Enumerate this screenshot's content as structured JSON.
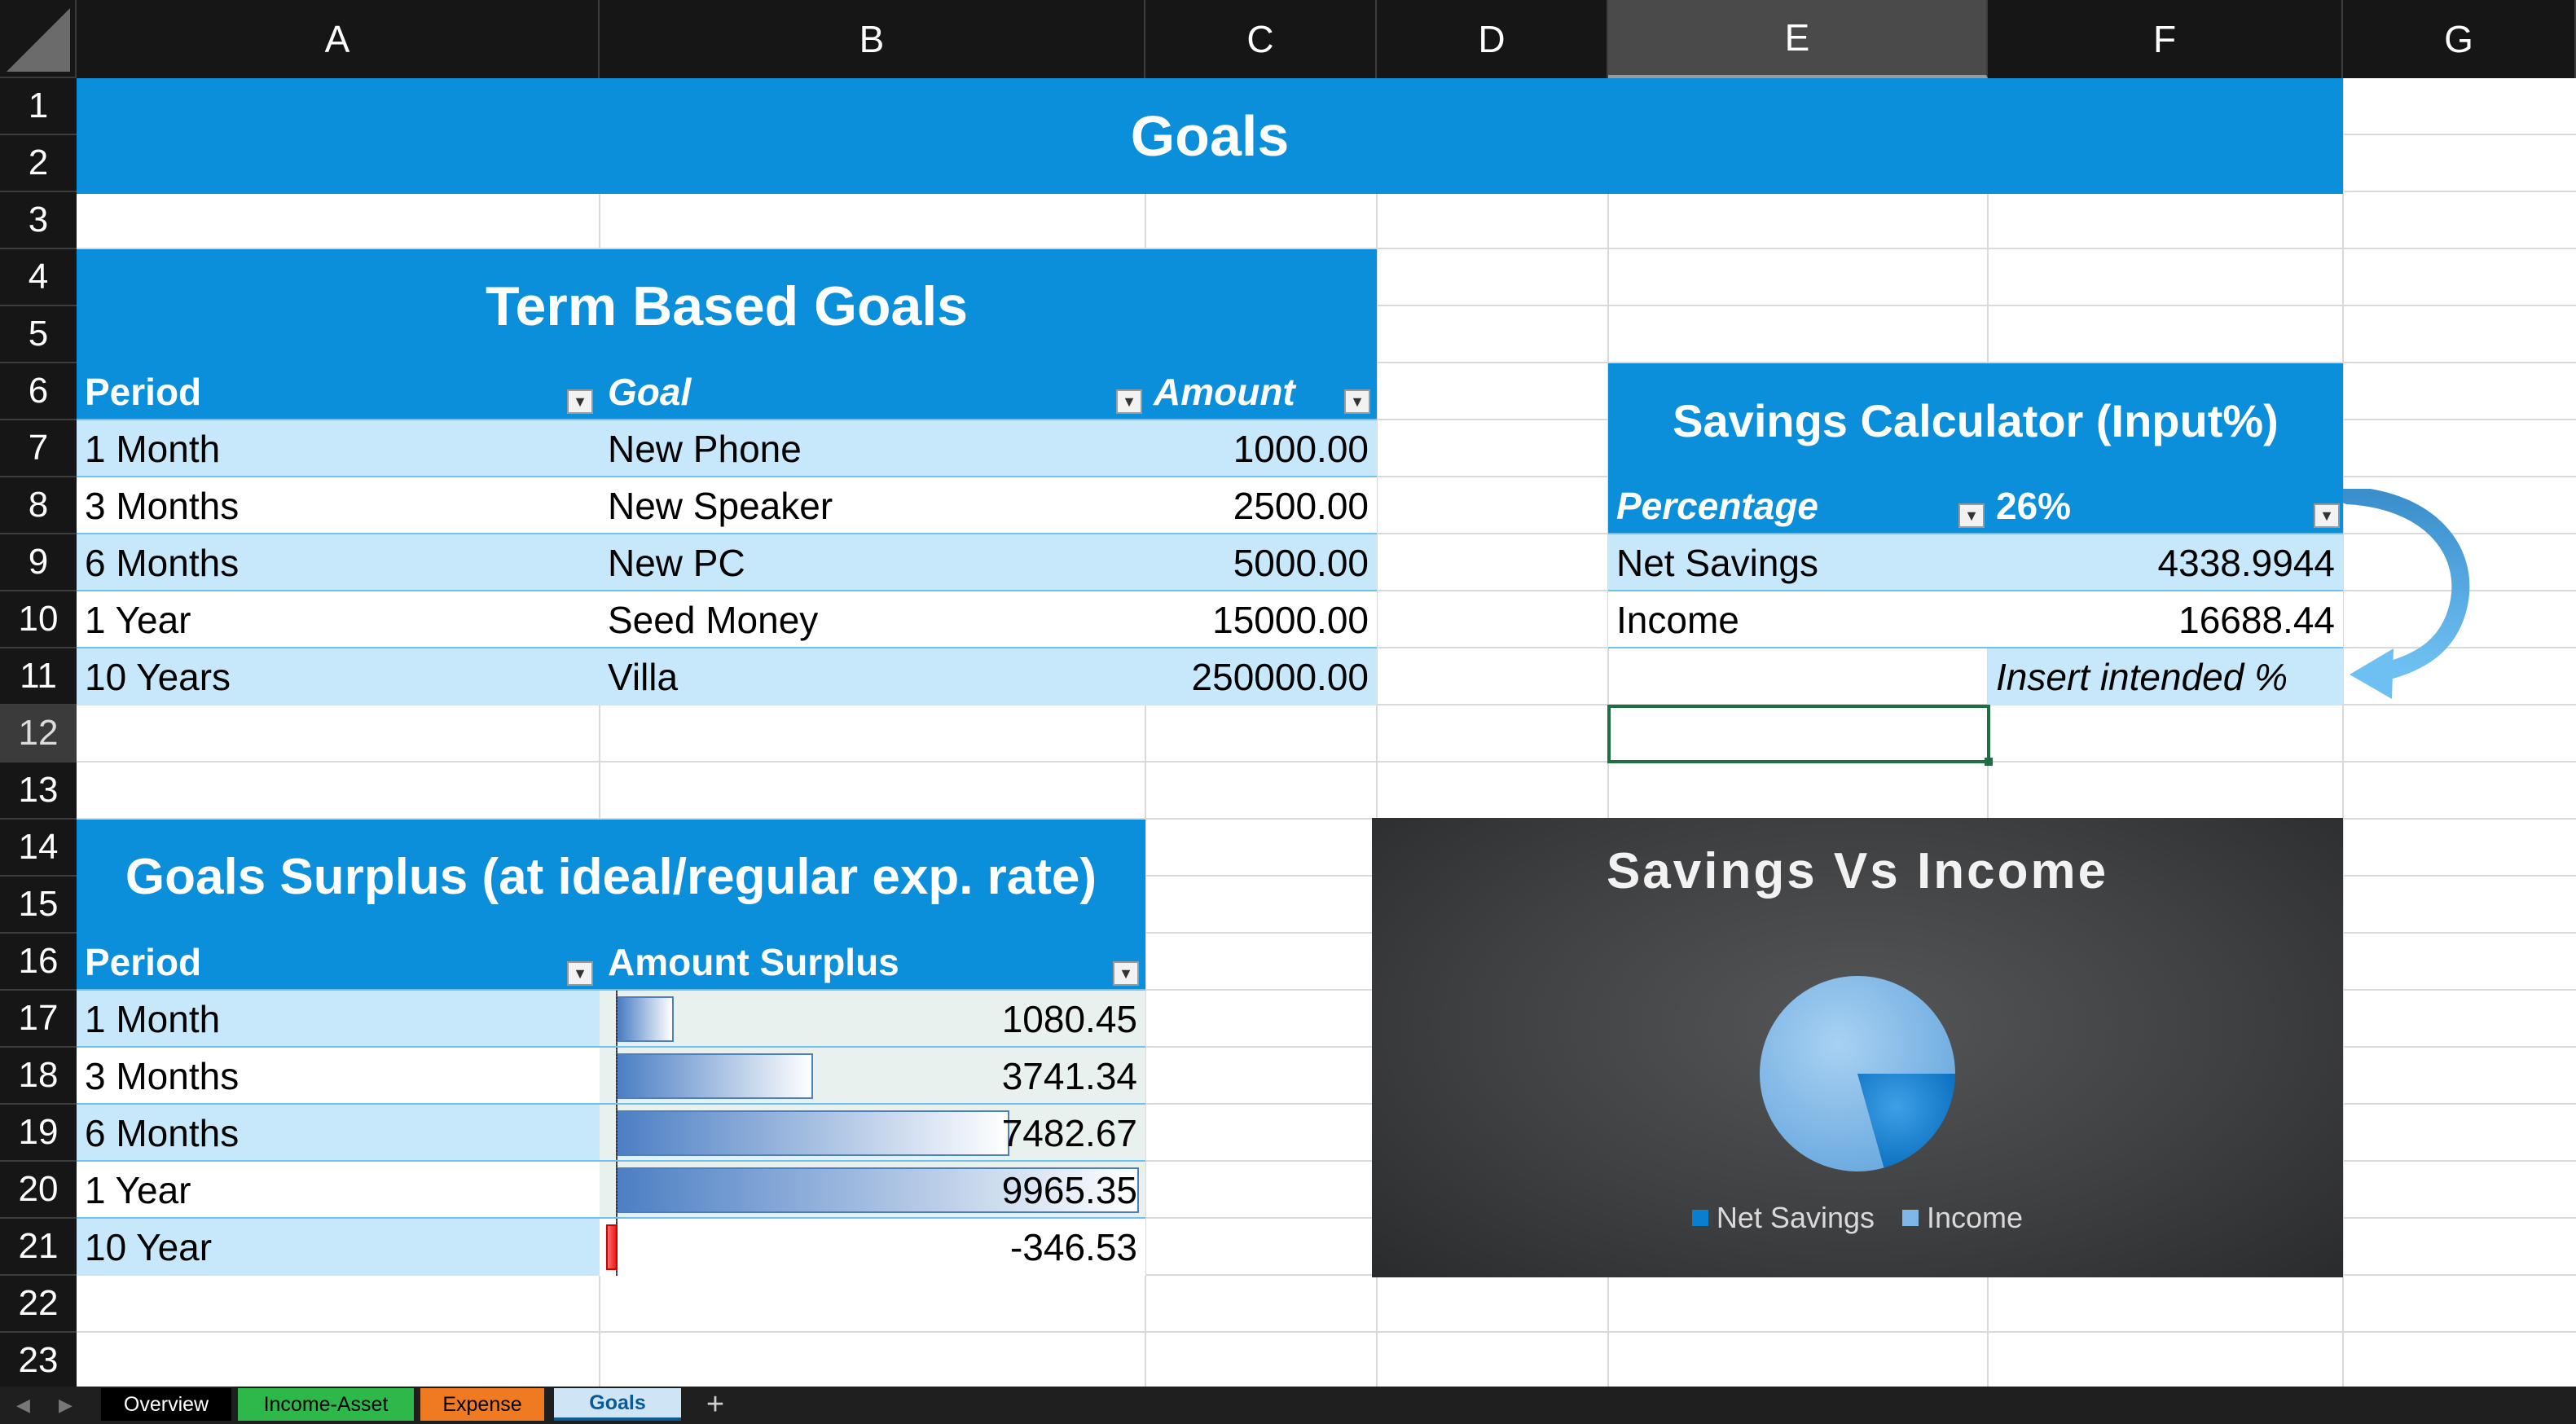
{
  "columns": [
    "A",
    "B",
    "C",
    "D",
    "E",
    "F",
    "G"
  ],
  "rows": [
    "1",
    "2",
    "3",
    "4",
    "5",
    "6",
    "7",
    "8",
    "9",
    "10",
    "11",
    "12",
    "13",
    "14",
    "15",
    "16",
    "17",
    "18",
    "19",
    "20",
    "21",
    "22",
    "23"
  ],
  "sheet_title": "Goals",
  "term_goals": {
    "title": "Term Based Goals",
    "headers": [
      "Period",
      "Goal",
      "Amount"
    ],
    "rows": [
      {
        "period": "1 Month",
        "goal": "New Phone",
        "amount": "1000.00"
      },
      {
        "period": "3 Months",
        "goal": "New Speaker",
        "amount": "2500.00"
      },
      {
        "period": "6 Months",
        "goal": "New PC",
        "amount": "5000.00"
      },
      {
        "period": "1 Year",
        "goal": "Seed Money",
        "amount": "15000.00"
      },
      {
        "period": "10 Years",
        "goal": "Villa",
        "amount": "250000.00"
      }
    ]
  },
  "savings_calc": {
    "title": "Savings Calculator (Input%)",
    "percentage_label": "Percentage",
    "percentage_value": "26%",
    "net_savings_label": "Net Savings",
    "net_savings_value": "4338.9944",
    "income_label": "Income",
    "income_value": "16688.44",
    "hint": "Insert intended %"
  },
  "surplus": {
    "title": "Goals Surplus (at ideal/regular exp. rate)",
    "headers": [
      "Period",
      "Amount Surplus"
    ],
    "rows": [
      {
        "period": "1 Month",
        "amount": "1080.45",
        "fill": 0.108
      },
      {
        "period": "3 Months",
        "amount": "3741.34",
        "fill": 0.375
      },
      {
        "period": "6 Months",
        "amount": "7482.67",
        "fill": 0.751
      },
      {
        "period": "1 Year",
        "amount": "9965.35",
        "fill": 1.0
      },
      {
        "period": "10 Year",
        "amount": "-346.53",
        "fill": -0.035
      }
    ]
  },
  "chart_data": {
    "type": "pie",
    "title": "Savings Vs Income",
    "categories": [
      "Net Savings",
      "Income"
    ],
    "values": [
      4338.9944,
      16688.44
    ],
    "legend_position": "bottom",
    "colors": [
      "#0a7fd0",
      "#7fb8e6"
    ]
  },
  "tabs": [
    {
      "label": "Overview",
      "color": "#000000",
      "text": "#ffffff"
    },
    {
      "label": "Income-Asset",
      "color": "#2eb84a",
      "text": "#000000"
    },
    {
      "label": "Expense",
      "color": "#f07a22",
      "text": "#000000"
    },
    {
      "label": "Goals",
      "color": "#cfe5f5",
      "text": "#0a5a96"
    }
  ],
  "add_sheet": "+",
  "accent": "#0c8fdb"
}
